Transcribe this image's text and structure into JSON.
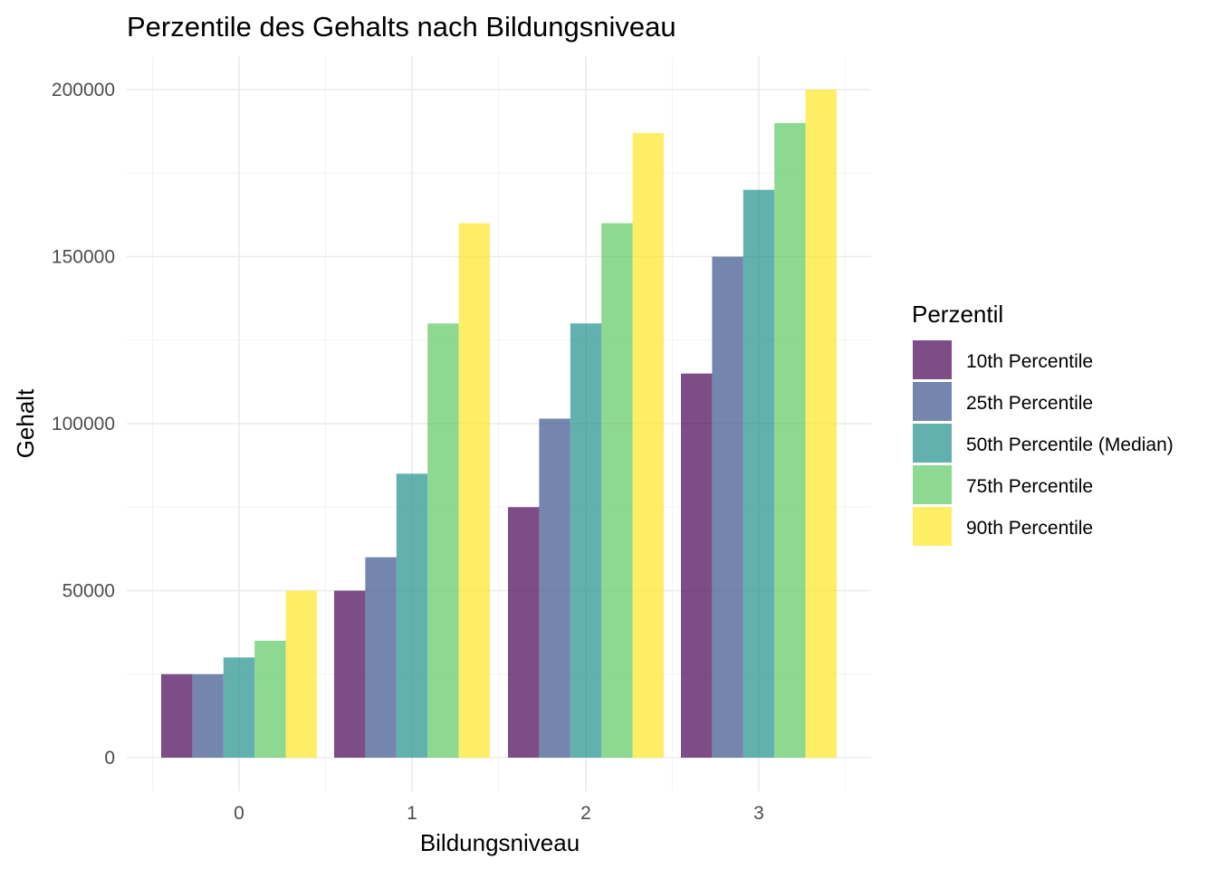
{
  "chart_data": {
    "type": "bar",
    "title": "Perzentile des Gehalts nach Bildungsniveau",
    "xlabel": "Bildungsniveau",
    "ylabel": "Gehalt",
    "categories": [
      "0",
      "1",
      "2",
      "3"
    ],
    "ylim": [
      0,
      210000
    ],
    "yticks": [
      0,
      50000,
      100000,
      150000,
      200000
    ],
    "ytick_labels": [
      "0",
      "50000",
      "100000",
      "150000",
      "200000"
    ],
    "grid": true,
    "legend": {
      "title": "Perzentil",
      "position": "right"
    },
    "series": [
      {
        "name": "10th Percentile",
        "color": "#440154",
        "values": [
          25000,
          50000,
          75000,
          115000
        ]
      },
      {
        "name": "25th Percentile",
        "color": "#3b528b",
        "values": [
          25000,
          60000,
          101500,
          150000
        ]
      },
      {
        "name": "50th Percentile (Median)",
        "color": "#21908c",
        "values": [
          30000,
          85000,
          130000,
          170000
        ]
      },
      {
        "name": "75th Percentile",
        "color": "#5dc963",
        "values": [
          35000,
          130000,
          160000,
          190000
        ]
      },
      {
        "name": "90th Percentile",
        "color": "#fde725",
        "values": [
          50000,
          160000,
          187000,
          200000
        ]
      }
    ]
  }
}
